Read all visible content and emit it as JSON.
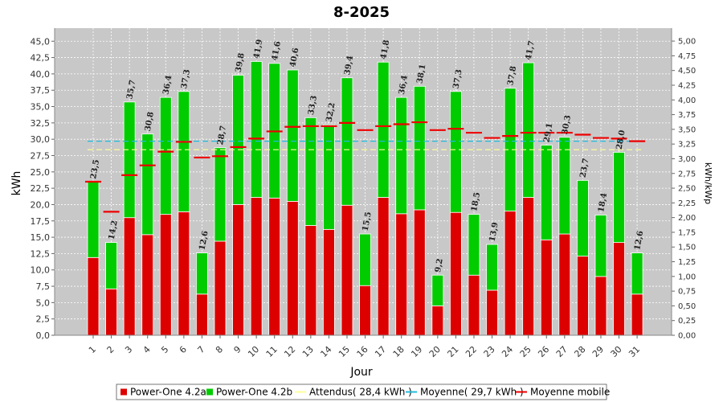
{
  "chart_data": {
    "type": "bar",
    "title": "8-2025",
    "xlabel": "Jour",
    "ylabel": "kWh",
    "y2label": "kWh/kWp",
    "ylim": [
      0,
      47
    ],
    "y2lim": [
      0,
      5.22
    ],
    "yticks": [
      "0,0",
      "2,5",
      "5,0",
      "7,5",
      "10,0",
      "12,5",
      "15,0",
      "17,5",
      "20,0",
      "22,5",
      "25,0",
      "27,5",
      "30,0",
      "32,5",
      "35,0",
      "37,5",
      "40,0",
      "42,5",
      "45,0"
    ],
    "y2ticks": [
      "0,00",
      "0,25",
      "0,50",
      "0,75",
      "1,00",
      "1,25",
      "1,50",
      "1,75",
      "2,00",
      "2,25",
      "2,50",
      "2,75",
      "3,00",
      "3,25",
      "3,50",
      "3,75",
      "4,00",
      "4,25",
      "4,50",
      "4,75",
      "5,00"
    ],
    "categories": [
      "1",
      "2",
      "3",
      "4",
      "5",
      "6",
      "7",
      "8",
      "9",
      "10",
      "11",
      "12",
      "13",
      "14",
      "15",
      "16",
      "17",
      "18",
      "19",
      "20",
      "21",
      "22",
      "23",
      "24",
      "25",
      "26",
      "27",
      "28",
      "29",
      "30",
      "31"
    ],
    "totals_labels": [
      "23,5",
      "14,2",
      "35,7",
      "30,8",
      "36,4",
      "37,3",
      "12,6",
      "28,7",
      "39,8",
      "41,9",
      "41,6",
      "40,6",
      "33,3",
      "32,2",
      "39,4",
      "15,5",
      "41,8",
      "36,4",
      "38,1",
      "9,2",
      "37,3",
      "18,5",
      "13,9",
      "37,8",
      "41,7",
      "29,1",
      "30,3",
      "23,7",
      "18,4",
      "28,0",
      "12,6"
    ],
    "series": [
      {
        "name": "Power-One 4.2a",
        "color": "#dd0000",
        "values": [
          11.9,
          7.1,
          18.0,
          15.4,
          18.5,
          18.9,
          6.3,
          14.4,
          20.0,
          21.1,
          21.0,
          20.5,
          16.8,
          16.2,
          19.9,
          7.6,
          21.1,
          18.6,
          19.2,
          4.5,
          18.8,
          9.2,
          6.9,
          19.0,
          21.1,
          14.6,
          15.5,
          12.1,
          9.0,
          14.2,
          6.3
        ]
      },
      {
        "name": "Power-One 4.2b",
        "color": "#00cc00",
        "values": [
          11.6,
          7.1,
          17.7,
          15.4,
          17.9,
          18.4,
          6.3,
          14.3,
          19.8,
          20.8,
          20.6,
          20.1,
          16.5,
          16.0,
          19.5,
          7.9,
          20.7,
          17.8,
          18.9,
          4.7,
          18.5,
          9.3,
          7.0,
          18.8,
          20.6,
          14.5,
          14.8,
          11.6,
          9.4,
          13.8,
          6.3
        ]
      },
      {
        "name": "Attendus( 28,4 kWh )",
        "color": "#ffff99",
        "value": 28.4
      },
      {
        "name": "Moyenne( 29,7 kWh )",
        "color": "#22bbdd",
        "value": 29.7
      },
      {
        "name": "Moyenne mobile",
        "color": "#ee0000",
        "values": [
          23.5,
          18.9,
          24.5,
          26.0,
          28.1,
          29.6,
          27.2,
          27.4,
          28.8,
          30.1,
          31.2,
          31.9,
          32.0,
          32.0,
          32.5,
          31.4,
          32.0,
          32.3,
          32.6,
          31.4,
          31.6,
          31.0,
          30.2,
          30.5,
          31.0,
          31.0,
          31.0,
          30.7,
          30.2,
          30.1,
          29.7
        ]
      }
    ],
    "legend_position": "bottom",
    "grid": true
  }
}
